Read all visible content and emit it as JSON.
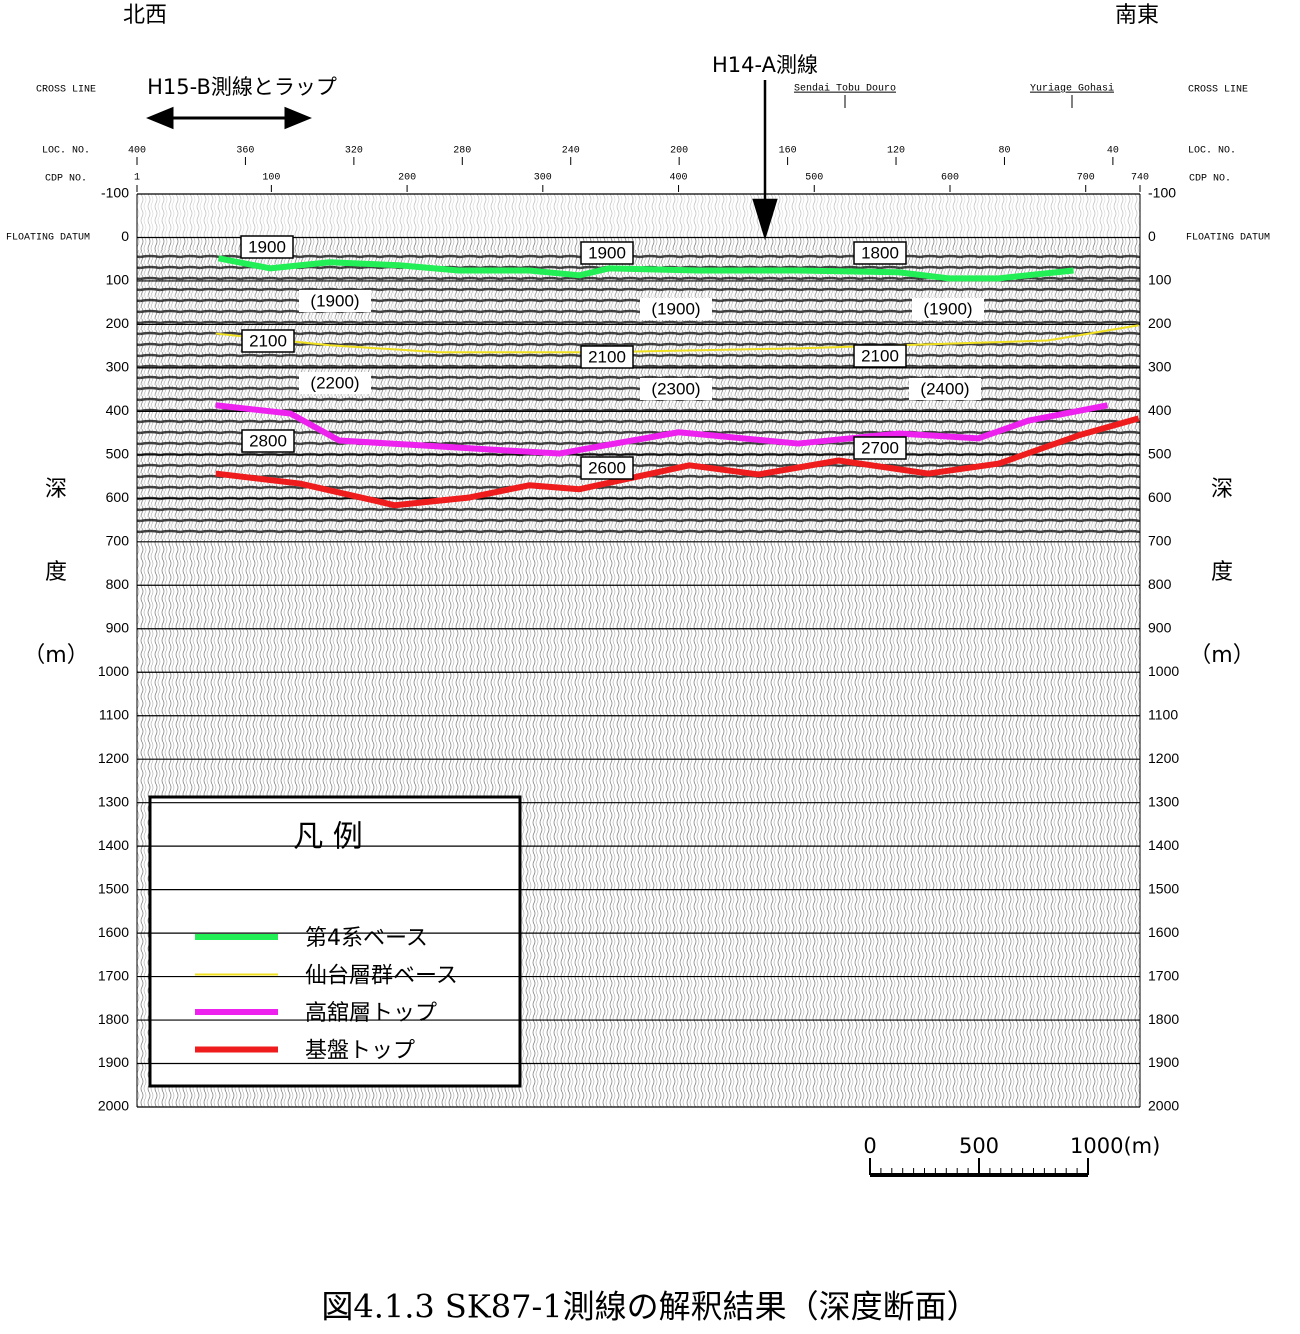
{
  "chart_data": {
    "type": "line",
    "title": "図4.1.3 SK87-1測線の解釈結果（深度断面）",
    "direction_left": "北西",
    "direction_right": "南東",
    "overlap_label": "H15-B測線とラップ",
    "intersect_label": "H14-A測線",
    "cross_line_label": "CROSS LINE",
    "crossings": [
      "Sendai Tobu Douro",
      "Yuriage Gohasi"
    ],
    "x_label": "CDP NO.",
    "x2_label": "LOC. NO.",
    "datum_label": "FLOATING DATUM",
    "y_label": [
      "深",
      "度",
      "（m）"
    ],
    "xlim": [
      1,
      740
    ],
    "xticks": [
      1,
      100,
      200,
      300,
      400,
      500,
      600,
      700,
      740
    ],
    "x2lim": [
      400,
      30
    ],
    "x2ticks": [
      400,
      360,
      320,
      280,
      240,
      200,
      160,
      120,
      80,
      40
    ],
    "ylim": [
      2000,
      -100
    ],
    "yticks": [
      -100,
      0,
      100,
      200,
      300,
      400,
      500,
      600,
      700,
      800,
      900,
      1000,
      1100,
      1200,
      1300,
      1400,
      1500,
      1600,
      1700,
      1800,
      1900,
      2000
    ],
    "grid": true,
    "legend": {
      "title": "凡 例",
      "position": "lower left"
    },
    "series": [
      {
        "name": "第4系ベース",
        "color": "#22ee55",
        "width": 6,
        "x": [
          61,
          99,
          143,
          194,
          238,
          290,
          327,
          349,
          415,
          488,
          562,
          599,
          636,
          691
        ],
        "values": [
          48,
          71,
          57,
          64,
          76,
          76,
          87,
          71,
          76,
          76,
          80,
          94,
          94,
          76
        ]
      },
      {
        "name": "仙台層群ベース",
        "color": "#f0e020",
        "width": 2,
        "x": [
          59,
          143,
          224,
          341,
          488,
          562,
          672,
          739
        ],
        "values": [
          221,
          248,
          264,
          264,
          255,
          248,
          237,
          202
        ]
      },
      {
        "name": "高舘層トップ",
        "color": "#ee22ee",
        "width": 6,
        "x": [
          59,
          114,
          150,
          209,
          312,
          400,
          488,
          562,
          621,
          658,
          716
        ],
        "values": [
          386,
          405,
          467,
          478,
          497,
          448,
          474,
          451,
          462,
          421,
          386
        ]
      },
      {
        "name": "基盤トップ",
        "color": "#ee1c1c",
        "width": 6,
        "x": [
          59,
          121,
          191,
          246,
          290,
          327,
          408,
          459,
          518,
          584,
          636,
          695,
          739
        ],
        "values": [
          543,
          566,
          616,
          598,
          570,
          579,
          524,
          545,
          513,
          543,
          520,
          455,
          416
        ]
      }
    ],
    "annotations": [
      "1900",
      "1900",
      "1800",
      "(1900)",
      "(1900)",
      "(1900)",
      "2100",
      "2100",
      "2100",
      "(2200)",
      "(2300)",
      "(2400)",
      "2800",
      "2600",
      "2700"
    ],
    "scale_bar": {
      "ticks": [
        0,
        500,
        {
          "value": 1000,
          "label": "1000(m)"
        }
      ]
    }
  }
}
